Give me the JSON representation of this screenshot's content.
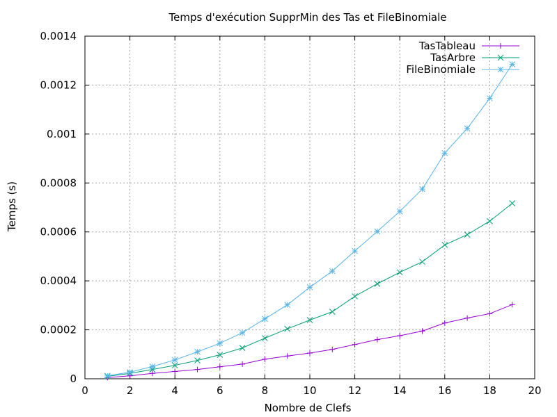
{
  "chart_data": {
    "type": "line",
    "title": "Temps d'exécution SupprMin des Tas et FileBinomiale",
    "xlabel": "Nombre de Clefs",
    "ylabel": "Temps (s)",
    "xlim": [
      0,
      20
    ],
    "ylim": [
      0,
      0.0014
    ],
    "xticks": [
      0,
      2,
      4,
      6,
      8,
      10,
      12,
      14,
      16,
      18,
      20
    ],
    "xtick_labels": [
      "0",
      "2",
      "4",
      "6",
      "8",
      "10",
      "12",
      "14",
      "16",
      "18",
      "20"
    ],
    "yticks": [
      0,
      0.0002,
      0.0004,
      0.0006,
      0.0008,
      0.001,
      0.0012,
      0.0014
    ],
    "ytick_labels": [
      "0",
      "0.0002",
      "0.0004",
      "0.0006",
      "0.0008",
      "0.001",
      "0.0012",
      "0.0014"
    ],
    "grid": true,
    "legend_position": "top-right",
    "x": [
      1,
      2,
      3,
      4,
      5,
      6,
      7,
      8,
      9,
      10,
      11,
      12,
      13,
      14,
      15,
      16,
      17,
      18,
      19
    ],
    "series": [
      {
        "name": "TasTableau",
        "color": "#9400d3",
        "marker": "plus",
        "values": [
          5e-06,
          1.2e-05,
          2.2e-05,
          3e-05,
          3.8e-05,
          4.9e-05,
          6e-05,
          8e-05,
          9.3e-05,
          0.000105,
          0.00012,
          0.00014,
          0.00016,
          0.000176,
          0.000195,
          0.000228,
          0.000248,
          0.000266,
          0.000303
        ]
      },
      {
        "name": "TasArbre",
        "color": "#009e73",
        "marker": "cross",
        "values": [
          1e-05,
          2.2e-05,
          3.8e-05,
          5.5e-05,
          7.5e-05,
          9.8e-05,
          0.000126,
          0.000166,
          0.000204,
          0.00024,
          0.000274,
          0.000337,
          0.000388,
          0.000435,
          0.000478,
          0.000547,
          0.000589,
          0.000644,
          0.000717
        ]
      },
      {
        "name": "FileBinomiale",
        "color": "#56b4e9",
        "marker": "star",
        "values": [
          1.2e-05,
          2.7e-05,
          5e-05,
          7.7e-05,
          0.00011,
          0.000145,
          0.000188,
          0.000245,
          0.000302,
          0.000374,
          0.00044,
          0.000522,
          0.000602,
          0.000684,
          0.000775,
          0.000922,
          0.001023,
          0.001146,
          0.001285
        ]
      }
    ]
  }
}
